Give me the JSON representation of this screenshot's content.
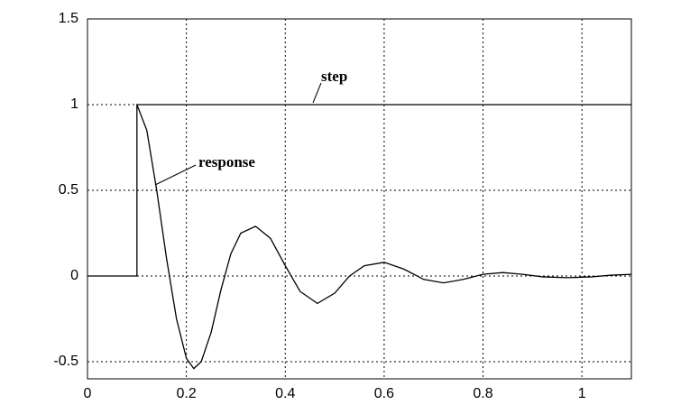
{
  "chart_data": {
    "type": "line",
    "xlim": [
      0,
      1.1
    ],
    "ylim": [
      -0.6,
      1.5
    ],
    "xticks": [
      0,
      0.2,
      0.4,
      0.6,
      0.8,
      1
    ],
    "yticks": [
      -0.5,
      0,
      0.5,
      1,
      1.5
    ],
    "grid": true,
    "series": [
      {
        "name": "step",
        "color": "#000000",
        "x": [
          0,
          0.1,
          0.1,
          1.1
        ],
        "values": [
          0,
          0,
          1,
          1
        ]
      },
      {
        "name": "response",
        "color": "#000000",
        "x": [
          0.1,
          0.12,
          0.14,
          0.16,
          0.18,
          0.2,
          0.215,
          0.23,
          0.25,
          0.27,
          0.29,
          0.31,
          0.34,
          0.37,
          0.4,
          0.43,
          0.465,
          0.5,
          0.53,
          0.56,
          0.6,
          0.64,
          0.68,
          0.72,
          0.76,
          0.8,
          0.84,
          0.88,
          0.92,
          0.97,
          1.02,
          1.06,
          1.1
        ],
        "values": [
          1,
          0.85,
          0.5,
          0.1,
          -0.25,
          -0.48,
          -0.54,
          -0.5,
          -0.33,
          -0.08,
          0.13,
          0.25,
          0.29,
          0.22,
          0.06,
          -0.09,
          -0.16,
          -0.1,
          0.0,
          0.06,
          0.08,
          0.04,
          -0.02,
          -0.04,
          -0.02,
          0.01,
          0.02,
          0.01,
          -0.005,
          -0.01,
          -0.005,
          0.005,
          0.01
        ]
      }
    ]
  }
}
